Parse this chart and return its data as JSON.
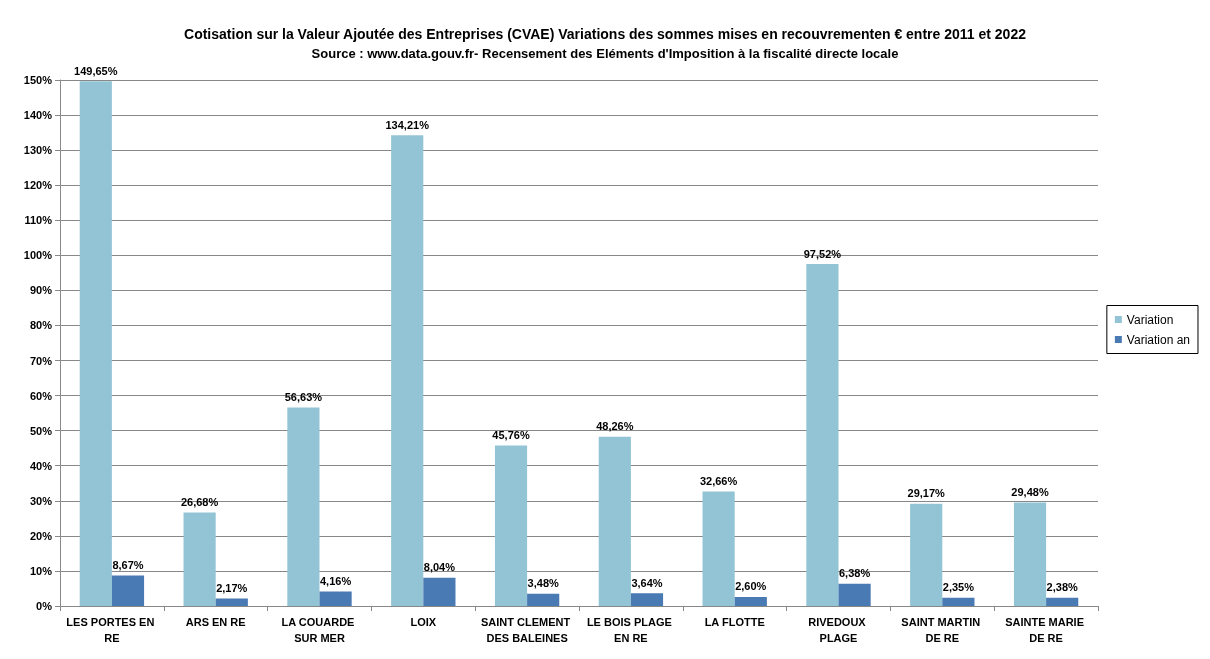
{
  "chart_data": {
    "type": "bar",
    "title": "Cotisation sur la Valeur Ajoutée des Entreprises (CVAE) Variations des sommes mises en recouvrementen € entre 2011 et 2022",
    "subtitle": "Source : www.data.gouv.fr- Recensement des Eléments d'Imposition à la fiscalité directe locale",
    "categories": [
      "LES PORTES EN RE",
      "ARS EN RE",
      "LA COUARDE SUR MER",
      "LOIX",
      "SAINT CLEMENT DES BALEINES",
      "LE BOIS PLAGE EN RE",
      "LA FLOTTE",
      "RIVEDOUX PLAGE",
      "SAINT MARTIN DE RE",
      "SAINTE MARIE DE RE"
    ],
    "series": [
      {
        "name": "Variation",
        "color": "#93c4d5",
        "values": [
          149.65,
          26.68,
          56.63,
          134.21,
          45.76,
          48.26,
          32.66,
          97.52,
          29.17,
          29.48
        ],
        "value_labels": [
          "149,65%",
          "26,68%",
          "56,63%",
          "134,21%",
          "45,76%",
          "48,26%",
          "32,66%",
          "97,52%",
          "29,17%",
          "29,48%"
        ]
      },
      {
        "name": "Variation an",
        "color": "#4a7ab4",
        "values": [
          8.67,
          2.17,
          4.16,
          8.04,
          3.48,
          3.64,
          2.6,
          6.38,
          2.35,
          2.38
        ],
        "value_labels": [
          "8,67%",
          "2,17%",
          "4,16%",
          "8,04%",
          "3,48%",
          "3,64%",
          "2,60%",
          "6,38%",
          "2,35%",
          "2,38%"
        ]
      }
    ],
    "ylim": [
      0,
      150
    ],
    "yticks": [
      {
        "value": 0,
        "label": "0%"
      },
      {
        "value": 10,
        "label": "10%"
      },
      {
        "value": 20,
        "label": "20%"
      },
      {
        "value": 30,
        "label": "30%"
      },
      {
        "value": 40,
        "label": "40%"
      },
      {
        "value": 50,
        "label": "50%"
      },
      {
        "value": 60,
        "label": "60%"
      },
      {
        "value": 70,
        "label": "70%"
      },
      {
        "value": 80,
        "label": "80%"
      },
      {
        "value": 90,
        "label": "90%"
      },
      {
        "value": 100,
        "label": "100%"
      },
      {
        "value": 110,
        "label": "110%"
      },
      {
        "value": 120,
        "label": "120%"
      },
      {
        "value": 130,
        "label": "130%"
      },
      {
        "value": 140,
        "label": "140%"
      },
      {
        "value": 150,
        "label": "150%"
      }
    ],
    "grid": "y",
    "legend": "right"
  }
}
